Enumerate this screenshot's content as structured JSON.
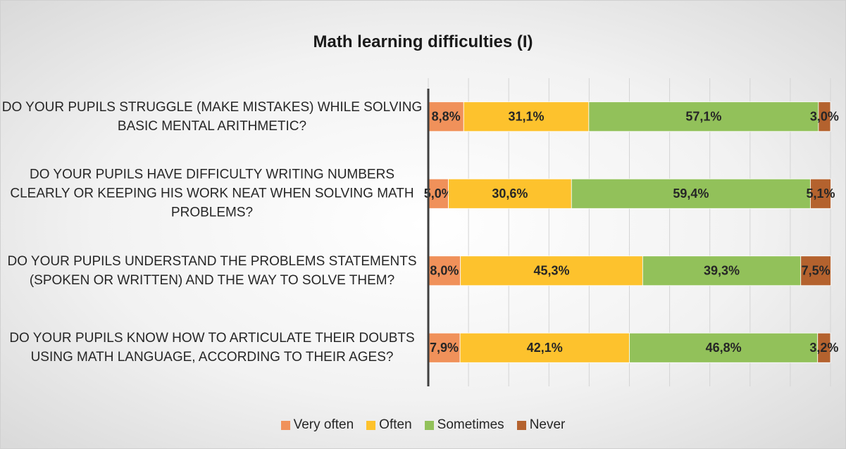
{
  "chart_data": {
    "type": "stacked_bar_horizontal",
    "title": "Math learning difficulties  (I)",
    "categories": [
      "DO YOUR PUPILS STRUGGLE (MAKE MISTAKES) WHILE SOLVING BASIC MENTAL ARITHMETIC?",
      "DO YOUR PUPILS HAVE DIFFICULTY WRITING NUMBERS CLEARLY OR KEEPING HIS WORK NEAT WHEN SOLVING MATH PROBLEMS?",
      "DO YOUR PUPILS UNDERSTAND THE PROBLEMS STATEMENTS (SPOKEN OR WRITTEN) AND THE WAY TO SOLVE THEM?",
      "DO YOUR PUPILS KNOW HOW TO ARTICULATE THEIR DOUBTS USING MATH LANGUAGE, ACCORDING TO THEIR AGES?"
    ],
    "series": [
      {
        "name": "Very often",
        "color": "#f0915a",
        "values": [
          8.8,
          5.0,
          8.0,
          7.9
        ],
        "value_labels": [
          "8,8%",
          "5,0%",
          "8,0%",
          "7,9%"
        ]
      },
      {
        "name": "Often",
        "color": "#fdc22d",
        "values": [
          31.1,
          30.6,
          45.3,
          42.1
        ],
        "value_labels": [
          "31,1%",
          "30,6%",
          "45,3%",
          "42,1%"
        ]
      },
      {
        "name": "Sometimes",
        "color": "#92c15a",
        "values": [
          57.1,
          59.4,
          39.3,
          46.8
        ],
        "value_labels": [
          "57,1%",
          "59,4%",
          "39,3%",
          "46,8%"
        ]
      },
      {
        "name": "Never",
        "color": "#b4622e",
        "values": [
          3.0,
          5.1,
          7.5,
          3.2
        ],
        "value_labels": [
          "3,0%",
          "5,1%",
          "7,5%",
          "3,2%"
        ]
      }
    ],
    "xlim": [
      0,
      100
    ],
    "xticks": [
      0,
      10,
      20,
      30,
      40,
      50,
      60,
      70,
      80,
      90,
      100
    ],
    "grid": true,
    "legend": "bottom"
  }
}
